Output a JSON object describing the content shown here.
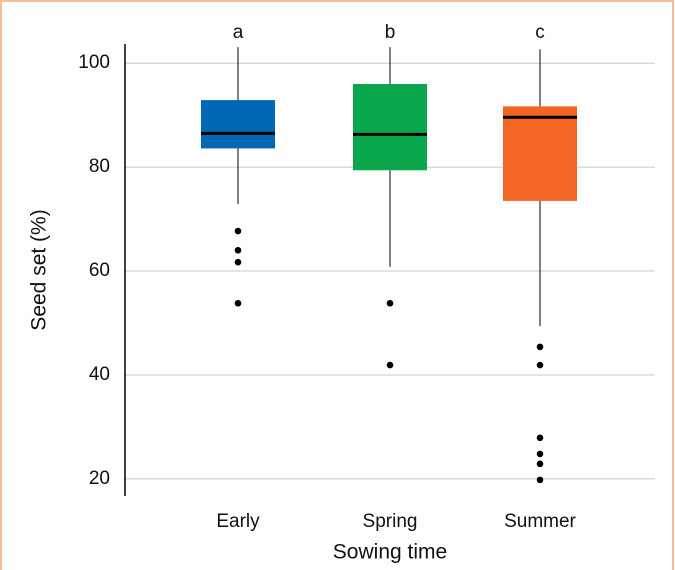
{
  "chart_data": {
    "type": "box",
    "ylabel": "Seed set (%)",
    "xlabel": "Sowing time",
    "categories": [
      "Early",
      "Spring",
      "Summer"
    ],
    "annotations": [
      "a",
      "b",
      "c"
    ],
    "colors": [
      "#0068b5",
      "#0aa64b",
      "#f26522"
    ],
    "boxes": [
      {
        "whislo": 72.9,
        "q1": 83.6,
        "med": 86.5,
        "q3": 92.9,
        "whishi": 103.1,
        "fliers": [
          67.7,
          64.0,
          61.7,
          53.8
        ]
      },
      {
        "whislo": 60.8,
        "q1": 79.4,
        "med": 86.3,
        "q3": 96.0,
        "whishi": 103.1,
        "fliers": [
          53.8,
          41.9
        ]
      },
      {
        "whislo": 49.4,
        "q1": 73.5,
        "med": 89.6,
        "q3": 91.7,
        "whishi": 102.7,
        "fliers": [
          45.4,
          41.9,
          27.9,
          24.8,
          22.9,
          19.8
        ]
      }
    ],
    "ylim": [
      16.7,
      103.7
    ],
    "yticks": [
      20,
      40,
      60,
      80,
      100
    ],
    "grid": true
  }
}
